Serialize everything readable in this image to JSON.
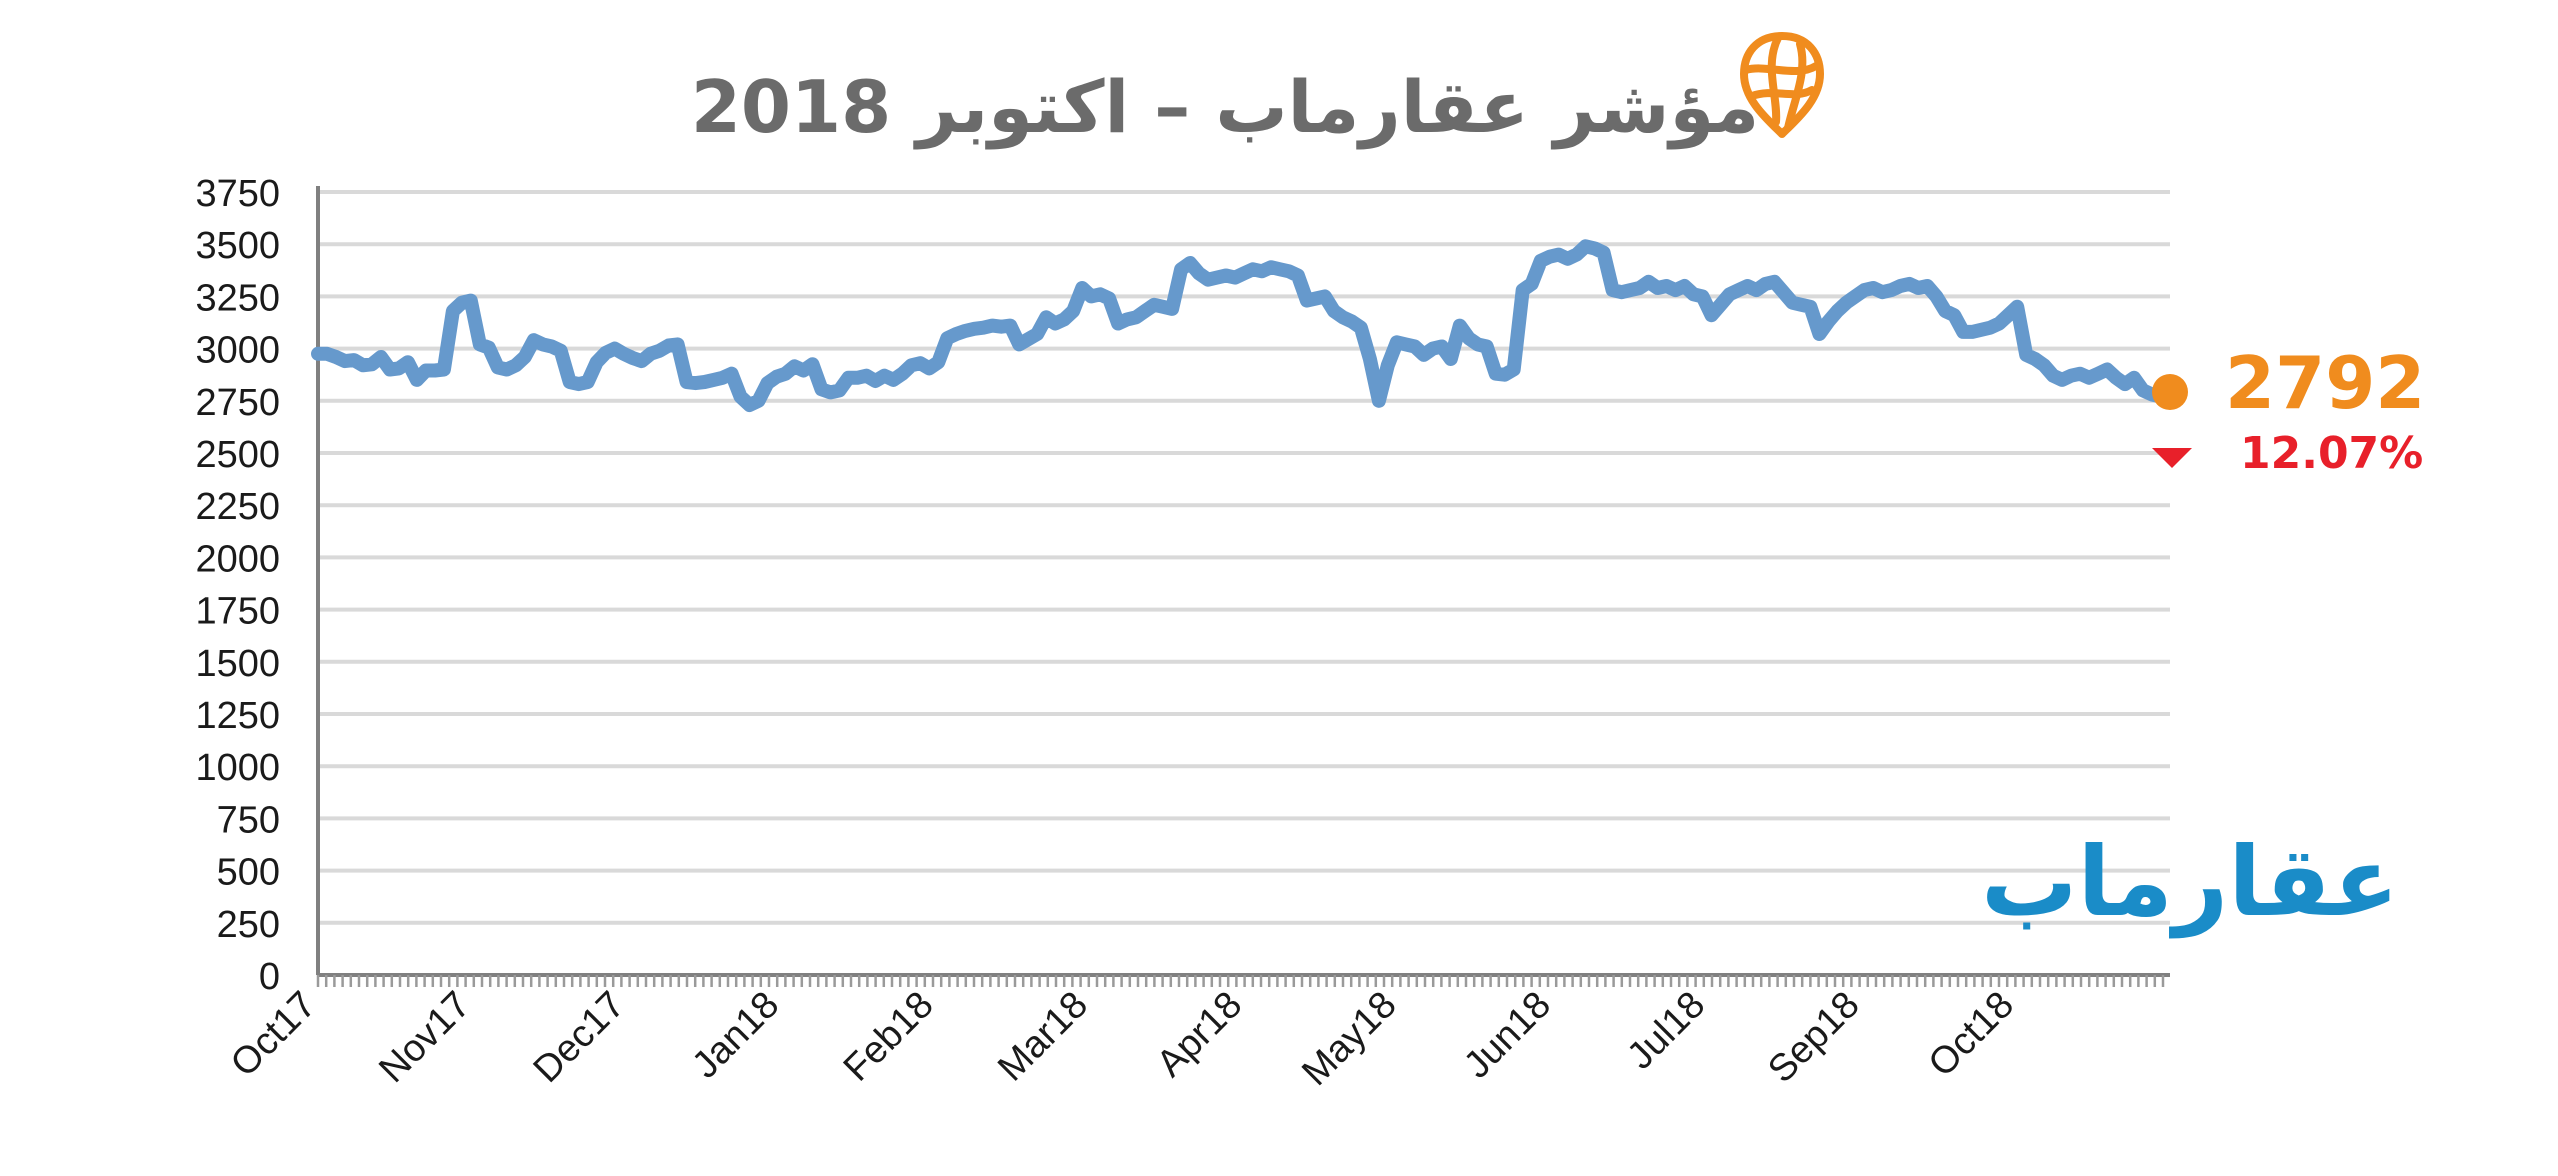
{
  "chart_data": {
    "type": "line",
    "title": "مؤشر عقارماب – اكتوبر 2018",
    "brand_name": "عقارماب",
    "ylim": [
      0,
      3750
    ],
    "yticks": [
      "0",
      "250",
      "500",
      "750",
      "1000",
      "1250",
      "1500",
      "1750",
      "2000",
      "2250",
      "2500",
      "2750",
      "3000",
      "3250",
      "3500",
      "3750"
    ],
    "xtick_labels": [
      "Oct17",
      "Nov17",
      "Dec17",
      "Jan18",
      "Feb18",
      "Mar18",
      "Apr18",
      "May18",
      "Jun18",
      "Jul18",
      "Sep18",
      "Oct18"
    ],
    "grid": true,
    "last_value_label": "2792",
    "last_value": 2792,
    "change_label": "12.07%",
    "change_direction": "down",
    "colors": {
      "line": "#6699cc",
      "marker": "#f08c1e",
      "last_value_text": "#f08c1e",
      "change": "#e8202a",
      "brand": "#1a8cc8",
      "logo_icon": "#f08c1e",
      "title": "#6b6b6b",
      "grid": "#d9d9d9",
      "axis": "#808080"
    },
    "icons": [
      "map-pin-globe-icon",
      "down-triangle-icon"
    ],
    "series": [
      {
        "values": [
          2975,
          2975,
          2960,
          2940,
          2945,
          2920,
          2925,
          2960,
          2900,
          2905,
          2935,
          2850,
          2895,
          2895,
          2900,
          3180,
          3220,
          3230,
          3020,
          3005,
          2910,
          2900,
          2920,
          2960,
          3040,
          3020,
          3010,
          2990,
          2840,
          2830,
          2840,
          2935,
          2980,
          3000,
          2975,
          2955,
          2940,
          2975,
          2990,
          3015,
          3020,
          2840,
          2835,
          2840,
          2850,
          2860,
          2880,
          2770,
          2730,
          2750,
          2835,
          2865,
          2880,
          2915,
          2895,
          2925,
          2805,
          2790,
          2800,
          2860,
          2860,
          2870,
          2845,
          2870,
          2850,
          2880,
          2920,
          2930,
          2905,
          2935,
          3050,
          3070,
          3085,
          3095,
          3100,
          3110,
          3105,
          3110,
          3020,
          3045,
          3070,
          3150,
          3120,
          3140,
          3180,
          3290,
          3250,
          3260,
          3240,
          3120,
          3140,
          3150,
          3180,
          3210,
          3200,
          3190,
          3380,
          3410,
          3360,
          3330,
          3340,
          3350,
          3340,
          3360,
          3380,
          3370,
          3390,
          3380,
          3370,
          3350,
          3230,
          3240,
          3250,
          3180,
          3150,
          3130,
          3100,
          2950,
          2750,
          2920,
          3030,
          3020,
          3010,
          2970,
          3000,
          3010,
          2950,
          3110,
          3050,
          3020,
          3010,
          2880,
          2875,
          2900,
          3280,
          3310,
          3420,
          3440,
          3450,
          3430,
          3450,
          3490,
          3480,
          3460,
          3280,
          3270,
          3280,
          3290,
          3320,
          3290,
          3300,
          3280,
          3300,
          3260,
          3250,
          3160,
          3210,
          3260,
          3280,
          3300,
          3280,
          3310,
          3320,
          3270,
          3220,
          3210,
          3200,
          3070,
          3130,
          3180,
          3220,
          3250,
          3280,
          3290,
          3270,
          3280,
          3300,
          3310,
          3290,
          3300,
          3250,
          3180,
          3160,
          3080,
          3080,
          3090,
          3100,
          3120,
          3160,
          3200,
          2970,
          2950,
          2920,
          2870,
          2850,
          2870,
          2880,
          2860,
          2880,
          2900,
          2860,
          2830,
          2860,
          2800,
          2780,
          2770,
          2792
        ]
      }
    ]
  }
}
